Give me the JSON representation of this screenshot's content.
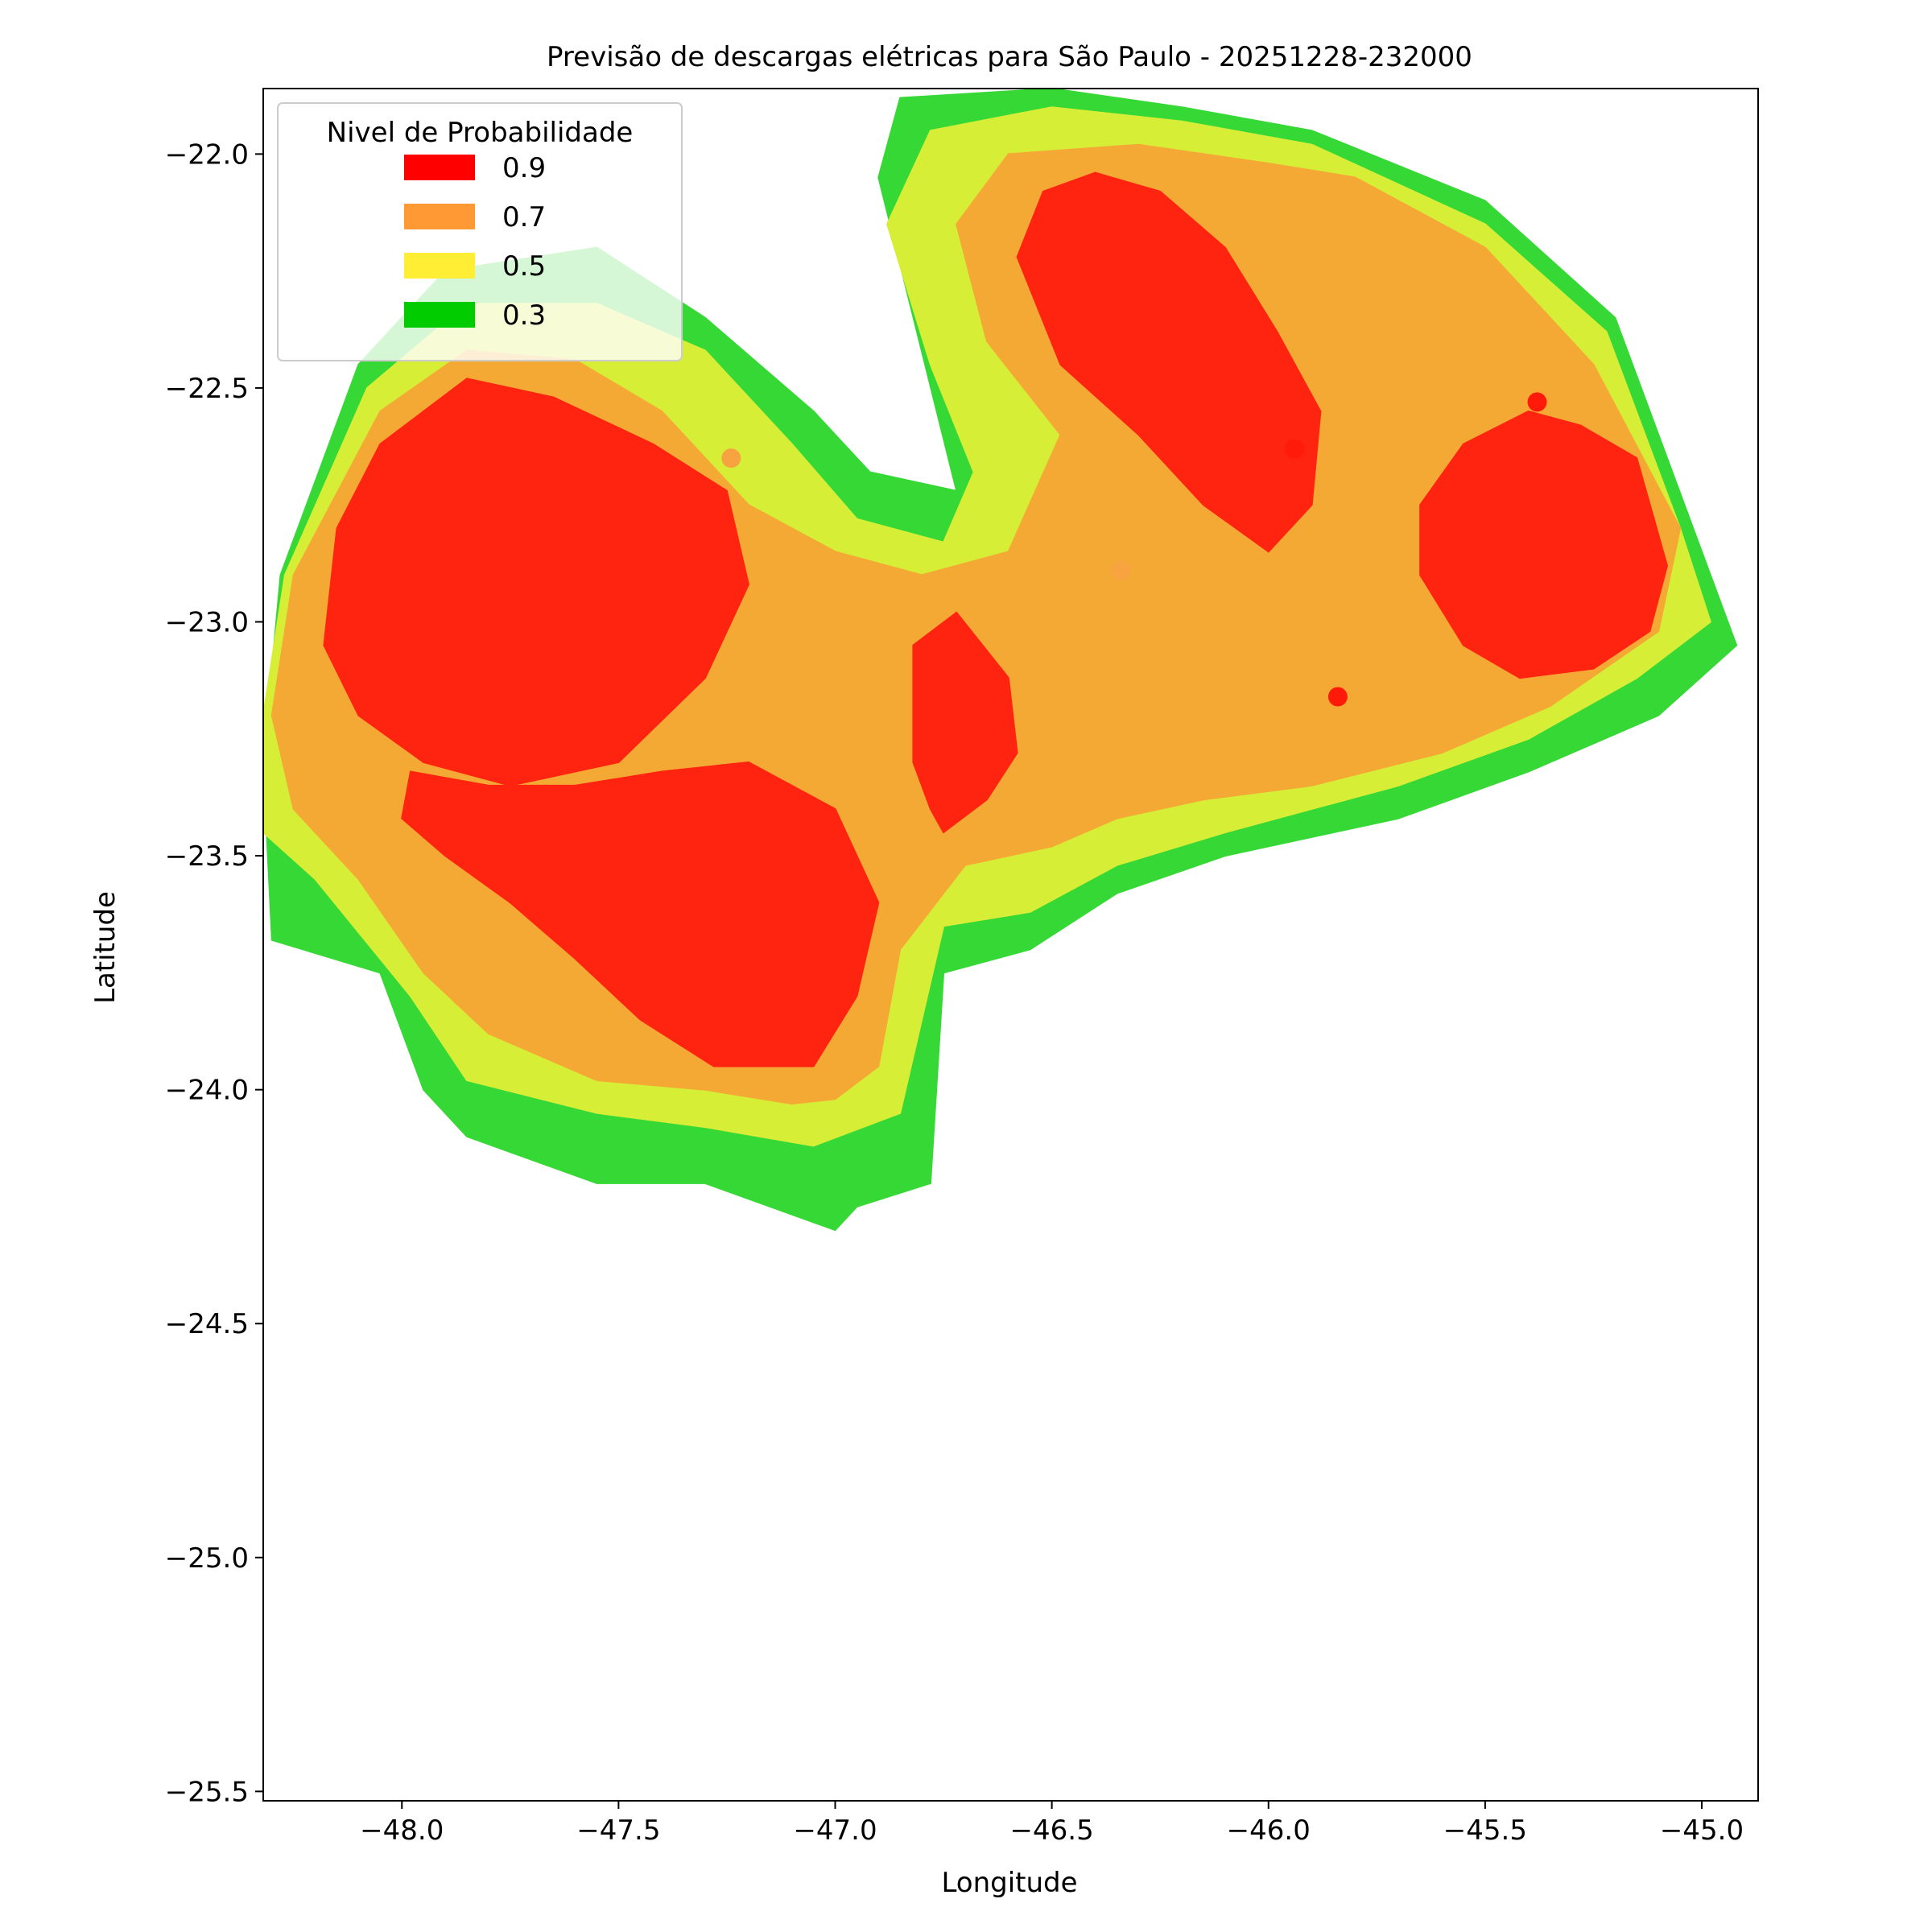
{
  "chart_data": {
    "type": "heatmap",
    "title": "Previsão de descargas elétricas para São Paulo - 20251228-232000",
    "xlabel": "Longitude",
    "ylabel": "Latitude",
    "xlim": [
      -48.32,
      -44.87
    ],
    "ylim": [
      -25.52,
      -21.86
    ],
    "xticks": [
      -48.0,
      -47.5,
      -47.0,
      -46.5,
      -46.0,
      -45.5,
      -45.0
    ],
    "yticks": [
      -22.0,
      -22.5,
      -23.0,
      -23.5,
      -24.0,
      -24.5,
      -25.0,
      -25.5
    ],
    "xtick_labels": [
      "−48.0",
      "−47.5",
      "−47.0",
      "−46.5",
      "−46.0",
      "−45.5",
      "−45.0"
    ],
    "ytick_labels": [
      "−22.0",
      "−22.5",
      "−23.0",
      "−23.5",
      "−24.0",
      "−24.5",
      "−25.0",
      "−25.5"
    ],
    "grid": false,
    "legend": {
      "title": "Nivel de Probabilidade",
      "placement": "top-left",
      "entries": [
        {
          "label": "0.9",
          "color": "#ff0000"
        },
        {
          "label": "0.7",
          "color": "#ff9933"
        },
        {
          "label": "0.5",
          "color": "#ffee33"
        },
        {
          "label": "0.3",
          "color": "#00cc00"
        }
      ]
    },
    "levels": [
      {
        "level": 0.3,
        "color": "#36d836",
        "polygons": [
          [
            [
              -47.0,
              -24.3
            ],
            [
              -47.3,
              -24.2
            ],
            [
              -47.55,
              -24.2
            ],
            [
              -47.85,
              -24.1
            ],
            [
              -47.95,
              -24.0
            ],
            [
              -48.05,
              -23.75
            ],
            [
              -48.3,
              -23.68
            ],
            [
              -48.32,
              -23.3
            ],
            [
              -48.28,
              -22.9
            ],
            [
              -48.1,
              -22.45
            ],
            [
              -47.9,
              -22.25
            ],
            [
              -47.55,
              -22.2
            ],
            [
              -47.3,
              -22.35
            ],
            [
              -47.05,
              -22.55
            ],
            [
              -46.92,
              -22.68
            ],
            [
              -46.72,
              -22.72
            ],
            [
              -46.9,
              -22.05
            ],
            [
              -46.85,
              -21.88
            ],
            [
              -46.5,
              -21.86
            ],
            [
              -46.2,
              -21.9
            ],
            [
              -45.9,
              -21.95
            ],
            [
              -45.5,
              -22.1
            ],
            [
              -45.2,
              -22.35
            ],
            [
              -45.02,
              -22.8
            ],
            [
              -44.92,
              -23.05
            ],
            [
              -45.1,
              -23.2
            ],
            [
              -45.4,
              -23.32
            ],
            [
              -45.7,
              -23.42
            ],
            [
              -46.1,
              -23.5
            ],
            [
              -46.35,
              -23.58
            ],
            [
              -46.55,
              -23.7
            ],
            [
              -46.75,
              -23.75
            ],
            [
              -46.78,
              -24.2
            ],
            [
              -46.95,
              -24.25
            ]
          ]
        ]
      },
      {
        "level": 0.5,
        "color": "#d7ee37",
        "polygons": [
          [
            [
              -47.05,
              -24.12
            ],
            [
              -47.3,
              -24.08
            ],
            [
              -47.55,
              -24.05
            ],
            [
              -47.85,
              -23.98
            ],
            [
              -47.98,
              -23.8
            ],
            [
              -48.2,
              -23.55
            ],
            [
              -48.32,
              -23.45
            ],
            [
              -48.32,
              -23.2
            ],
            [
              -48.27,
              -22.9
            ],
            [
              -48.08,
              -22.5
            ],
            [
              -47.85,
              -22.32
            ],
            [
              -47.55,
              -22.32
            ],
            [
              -47.3,
              -22.42
            ],
            [
              -47.1,
              -22.62
            ],
            [
              -46.95,
              -22.78
            ],
            [
              -46.75,
              -22.83
            ],
            [
              -46.68,
              -22.68
            ],
            [
              -46.78,
              -22.45
            ],
            [
              -46.88,
              -22.15
            ],
            [
              -46.78,
              -21.95
            ],
            [
              -46.5,
              -21.9
            ],
            [
              -46.2,
              -21.93
            ],
            [
              -45.9,
              -21.98
            ],
            [
              -45.5,
              -22.15
            ],
            [
              -45.22,
              -22.38
            ],
            [
              -45.05,
              -22.8
            ],
            [
              -44.98,
              -23.0
            ],
            [
              -45.15,
              -23.12
            ],
            [
              -45.4,
              -23.25
            ],
            [
              -45.7,
              -23.35
            ],
            [
              -46.1,
              -23.45
            ],
            [
              -46.35,
              -23.52
            ],
            [
              -46.55,
              -23.62
            ],
            [
              -46.75,
              -23.65
            ],
            [
              -46.85,
              -24.05
            ]
          ]
        ]
      },
      {
        "level": 0.7,
        "color": "#f5a935",
        "polygons": [
          [
            [
              -47.1,
              -24.03
            ],
            [
              -47.3,
              -24.0
            ],
            [
              -47.55,
              -23.98
            ],
            [
              -47.8,
              -23.88
            ],
            [
              -47.95,
              -23.75
            ],
            [
              -48.1,
              -23.55
            ],
            [
              -48.25,
              -23.4
            ],
            [
              -48.3,
              -23.2
            ],
            [
              -48.25,
              -22.9
            ],
            [
              -48.05,
              -22.55
            ],
            [
              -47.85,
              -22.42
            ],
            [
              -47.6,
              -22.44
            ],
            [
              -47.4,
              -22.55
            ],
            [
              -47.2,
              -22.75
            ],
            [
              -47.0,
              -22.85
            ],
            [
              -46.8,
              -22.9
            ],
            [
              -46.6,
              -22.85
            ],
            [
              -46.48,
              -22.6
            ],
            [
              -46.65,
              -22.4
            ],
            [
              -46.72,
              -22.15
            ],
            [
              -46.6,
              -22.0
            ],
            [
              -46.3,
              -21.98
            ],
            [
              -46.0,
              -22.02
            ],
            [
              -45.8,
              -22.05
            ],
            [
              -45.5,
              -22.2
            ],
            [
              -45.25,
              -22.45
            ],
            [
              -45.05,
              -22.8
            ],
            [
              -45.1,
              -23.02
            ],
            [
              -45.35,
              -23.18
            ],
            [
              -45.6,
              -23.28
            ],
            [
              -45.9,
              -23.35
            ],
            [
              -46.15,
              -23.38
            ],
            [
              -46.35,
              -23.42
            ],
            [
              -46.5,
              -23.48
            ],
            [
              -46.7,
              -23.52
            ],
            [
              -46.85,
              -23.7
            ],
            [
              -46.9,
              -23.95
            ],
            [
              -47.0,
              -24.02
            ]
          ]
        ]
      },
      {
        "level": 0.9,
        "color": "#fe2410",
        "polygons": [
          [
            [
              -47.05,
              -23.95
            ],
            [
              -47.28,
              -23.95
            ],
            [
              -47.45,
              -23.85
            ],
            [
              -47.6,
              -23.72
            ],
            [
              -47.75,
              -23.6
            ],
            [
              -47.9,
              -23.5
            ],
            [
              -48.0,
              -23.42
            ],
            [
              -47.98,
              -23.32
            ],
            [
              -47.8,
              -23.35
            ],
            [
              -47.6,
              -23.35
            ],
            [
              -47.4,
              -23.32
            ],
            [
              -47.2,
              -23.3
            ],
            [
              -47.0,
              -23.4
            ],
            [
              -46.9,
              -23.6
            ],
            [
              -46.95,
              -23.8
            ]
          ],
          [
            [
              -47.75,
              -23.35
            ],
            [
              -47.5,
              -23.3
            ],
            [
              -47.3,
              -23.12
            ],
            [
              -47.2,
              -22.92
            ],
            [
              -47.25,
              -22.72
            ],
            [
              -47.42,
              -22.62
            ],
            [
              -47.65,
              -22.52
            ],
            [
              -47.85,
              -22.48
            ],
            [
              -48.05,
              -22.62
            ],
            [
              -48.15,
              -22.8
            ],
            [
              -48.18,
              -23.05
            ],
            [
              -48.1,
              -23.2
            ],
            [
              -47.95,
              -23.3
            ]
          ],
          [
            [
              -46.75,
              -23.45
            ],
            [
              -46.65,
              -23.38
            ],
            [
              -46.58,
              -23.28
            ],
            [
              -46.6,
              -23.12
            ],
            [
              -46.72,
              -22.98
            ],
            [
              -46.82,
              -23.05
            ],
            [
              -46.82,
              -23.3
            ],
            [
              -46.78,
              -23.4
            ]
          ],
          [
            [
              -46.0,
              -22.85
            ],
            [
              -45.9,
              -22.75
            ],
            [
              -45.88,
              -22.55
            ],
            [
              -45.98,
              -22.38
            ],
            [
              -46.1,
              -22.2
            ],
            [
              -46.25,
              -22.08
            ],
            [
              -46.4,
              -22.04
            ],
            [
              -46.52,
              -22.08
            ],
            [
              -46.58,
              -22.22
            ],
            [
              -46.48,
              -22.45
            ],
            [
              -46.3,
              -22.6
            ],
            [
              -46.15,
              -22.75
            ]
          ],
          [
            [
              -45.25,
              -23.1
            ],
            [
              -45.42,
              -23.12
            ],
            [
              -45.55,
              -23.05
            ],
            [
              -45.65,
              -22.9
            ],
            [
              -45.65,
              -22.75
            ],
            [
              -45.55,
              -22.62
            ],
            [
              -45.4,
              -22.55
            ],
            [
              -45.28,
              -22.58
            ],
            [
              -45.15,
              -22.65
            ],
            [
              -45.08,
              -22.88
            ],
            [
              -45.12,
              -23.02
            ]
          ]
        ]
      }
    ],
    "markers": [
      {
        "lon": -45.94,
        "lat": -22.63,
        "level": 0.9
      },
      {
        "lon": -45.38,
        "lat": -22.53,
        "level": 0.9
      },
      {
        "lon": -45.84,
        "lat": -23.16,
        "level": 0.9
      },
      {
        "lon": -46.34,
        "lat": -22.89,
        "level": 0.7
      },
      {
        "lon": -47.24,
        "lat": -22.65,
        "level": 0.7
      }
    ]
  }
}
